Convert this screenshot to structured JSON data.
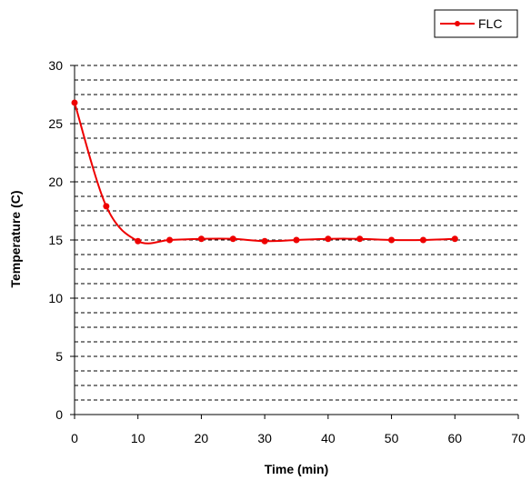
{
  "chart_data": {
    "type": "line",
    "title": "",
    "xlabel": "Time (min)",
    "ylabel": "Temperature (C)",
    "xlim": [
      0,
      70
    ],
    "ylim": [
      0,
      30
    ],
    "x_ticks": [
      0,
      10,
      20,
      30,
      40,
      50,
      60,
      70
    ],
    "y_ticks": [
      0,
      5,
      10,
      15,
      20,
      25,
      30
    ],
    "x_tick_labels": [
      "0",
      "10",
      "20",
      "30",
      "40",
      "50",
      "60",
      "70"
    ],
    "y_tick_labels": [
      "0",
      "5",
      "10",
      "15",
      "20",
      "25",
      "30"
    ],
    "grid": "horizontal dashed",
    "legend_position": "top-right",
    "series": [
      {
        "name": "FLC",
        "color": "#ee0000",
        "marker": "circle",
        "x": [
          0,
          5,
          10,
          15,
          20,
          25,
          30,
          35,
          40,
          45,
          50,
          55,
          60
        ],
        "y": [
          26.8,
          17.9,
          14.9,
          15.0,
          15.1,
          15.1,
          14.9,
          15.0,
          15.1,
          15.1,
          15.0,
          15.0,
          15.1
        ]
      }
    ]
  }
}
